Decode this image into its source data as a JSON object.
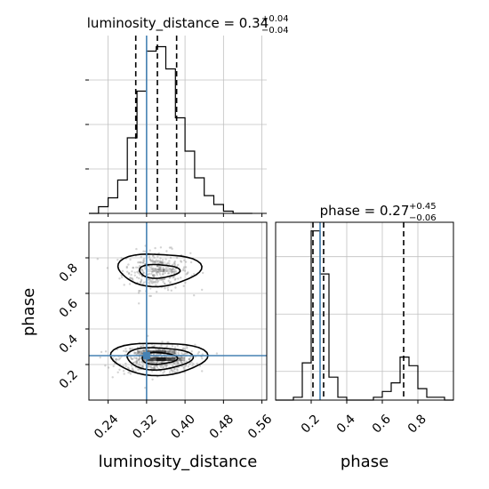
{
  "chart_data": {
    "type": "corner",
    "parameters": [
      "luminosity_distance",
      "phase"
    ],
    "truths": {
      "luminosity_distance": 0.32,
      "phase": 0.25
    },
    "panels": [
      {
        "id": "hist-luminosity-distance",
        "type": "histogram",
        "title": {
          "main": "luminosity_distance = 0.34",
          "plus": "+0.04",
          "minus": "−0.04"
        },
        "median": 0.34,
        "quantiles": [
          0.2975,
          0.3425,
          0.3825
        ],
        "xlim": [
          0.2,
          0.57
        ],
        "bin_edges": [
          0.2,
          0.22,
          0.24,
          0.26,
          0.28,
          0.3,
          0.32,
          0.34,
          0.36,
          0.38,
          0.4,
          0.42,
          0.44,
          0.46,
          0.48,
          0.5,
          0.52,
          0.54
        ],
        "counts": [
          0,
          3,
          7,
          15,
          34,
          55,
          73,
          75,
          65,
          43,
          28,
          16,
          8,
          4,
          1,
          0,
          0
        ],
        "ymax": 80
      },
      {
        "id": "hist-phase",
        "type": "histogram",
        "title": {
          "main": "phase = 0.27",
          "plus": "+0.45",
          "minus": "−0.06"
        },
        "median": 0.27,
        "quantiles": [
          0.21,
          0.27,
          0.72
        ],
        "xlim": [
          0.0,
          1.0
        ],
        "bin_edges": [
          0.0,
          0.05,
          0.1,
          0.15,
          0.2,
          0.25,
          0.3,
          0.35,
          0.4,
          0.45,
          0.5,
          0.55,
          0.6,
          0.65,
          0.7,
          0.75,
          0.8,
          0.85,
          0.9,
          0.95,
          1.0
        ],
        "counts": [
          0,
          0,
          1,
          13,
          59,
          44,
          8,
          1,
          0,
          0,
          0,
          1,
          3,
          6,
          15,
          12,
          4,
          1,
          1,
          0
        ],
        "ymax": 62
      },
      {
        "id": "scatter-phase-vs-luminosity",
        "type": "2d-density",
        "xlim": [
          0.2,
          0.57
        ],
        "ylim": [
          0.0,
          1.0
        ],
        "modes": [
          {
            "x": 0.34,
            "y": 0.73,
            "sx": 0.035,
            "sy": 0.055,
            "weight": 0.35
          },
          {
            "x": 0.34,
            "y": 0.23,
            "sx": 0.04,
            "sy": 0.04,
            "weight": 0.65
          }
        ]
      }
    ],
    "x_axis_luminosity": {
      "label": "luminosity_distance",
      "ticks": [
        0.24,
        0.32,
        0.4,
        0.48,
        0.56
      ],
      "tick_labels": [
        "0.24",
        "0.32",
        "0.40",
        "0.48",
        "0.56"
      ]
    },
    "x_axis_phase": {
      "label": "phase",
      "ticks": [
        0.2,
        0.4,
        0.6,
        0.8
      ],
      "tick_labels": [
        "0.2",
        "0.4",
        "0.6",
        "0.8"
      ]
    },
    "y_axis_phase": {
      "label": "phase",
      "ticks": [
        0.2,
        0.4,
        0.6,
        0.8
      ],
      "tick_labels": [
        "0.2",
        "0.4",
        "0.6",
        "0.8"
      ]
    },
    "grid": true,
    "colors": {
      "truth": "#4682b4",
      "hist": "#000000",
      "points": "#808080",
      "contour": "#000000",
      "grid": "#c0c0c0"
    }
  }
}
